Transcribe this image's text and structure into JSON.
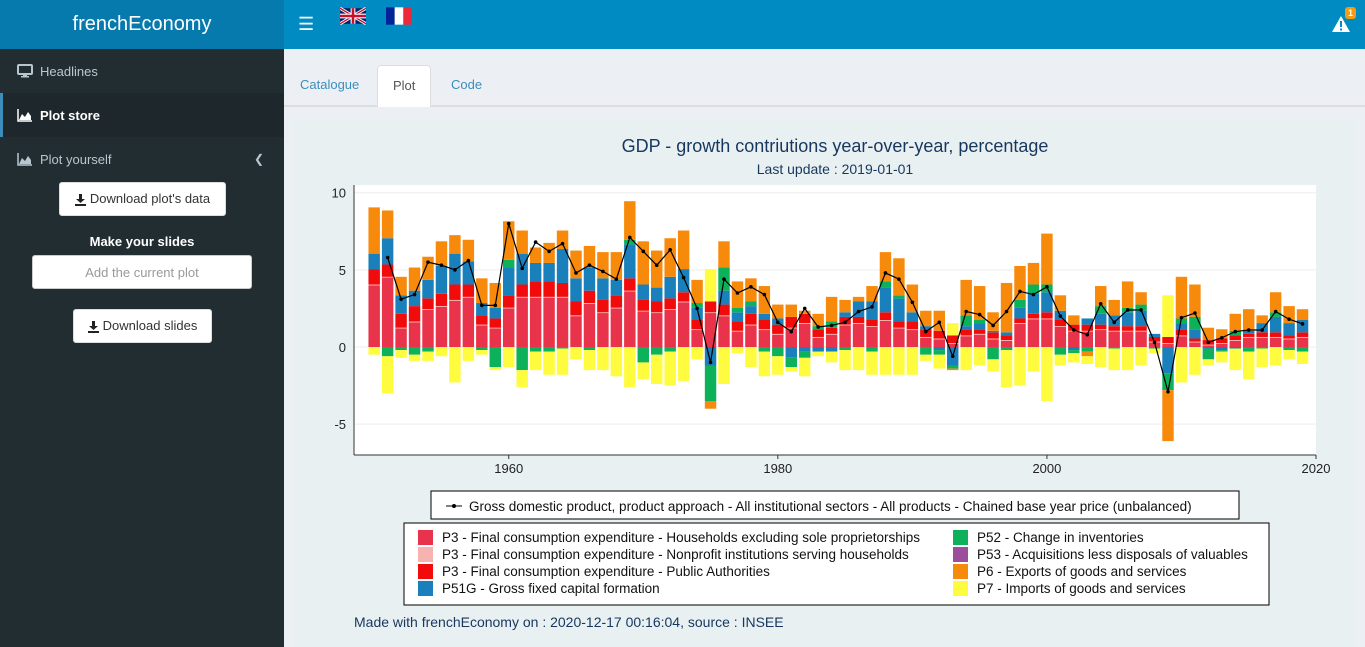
{
  "app": {
    "title": "frenchEconomy"
  },
  "sidebar": {
    "items": [
      {
        "label": "Headlines",
        "icon": "desktop-icon"
      },
      {
        "label": "Plot store",
        "icon": "area-chart-icon"
      },
      {
        "label": "Plot yourself",
        "icon": "area-chart-icon"
      }
    ],
    "download_data_label": "Download plot's data",
    "slides_heading": "Make your slides",
    "add_plot_placeholder": "Add the current plot",
    "download_slides_label": "Download slides"
  },
  "header": {
    "alert_count": "1",
    "flags": [
      "uk-flag",
      "france-flag"
    ]
  },
  "tabs": [
    {
      "label": "Catalogue"
    },
    {
      "label": "Plot"
    },
    {
      "label": "Code"
    }
  ],
  "footer": "Made with frenchEconomy on : 2020-12-17 00:16:04, source : INSEE",
  "colors": {
    "P3_hh": "#e8334a",
    "P3_npish": "#f7b3b0",
    "P3_gov": "#f20b0b",
    "P51G": "#1a80bb",
    "P52": "#0cb159",
    "P53": "#9c4d9c",
    "P6": "#f78a0b",
    "P7": "#fffb3f",
    "brand": "#0679ad",
    "topbar": "#008cc3"
  },
  "chart_data": {
    "type": "bar",
    "title": "GDP - growth contriutions year-over-year, percentage",
    "subtitle": "Last update : 2019-01-01",
    "xlabel": "",
    "ylabel": "",
    "xlim": [
      1948.5,
      2020
    ],
    "ylim": [
      -7,
      10.5
    ],
    "xticks": [
      1960,
      1980,
      2000,
      2020
    ],
    "yticks": [
      10,
      5,
      0,
      -5
    ],
    "stacked": true,
    "line_legend": "Gross domestic product, product approach - All institutional sectors - All products - Chained base year price (unbalanced)",
    "legend": {
      "position": "bottom"
    },
    "x": [
      1950,
      1951,
      1952,
      1953,
      1954,
      1955,
      1956,
      1957,
      1958,
      1959,
      1960,
      1961,
      1962,
      1963,
      1964,
      1965,
      1966,
      1967,
      1968,
      1969,
      1970,
      1971,
      1972,
      1973,
      1974,
      1975,
      1976,
      1977,
      1978,
      1979,
      1980,
      1981,
      1982,
      1983,
      1984,
      1985,
      1986,
      1987,
      1988,
      1989,
      1990,
      1991,
      1992,
      1993,
      1994,
      1995,
      1996,
      1997,
      1998,
      1999,
      2000,
      2001,
      2002,
      2003,
      2004,
      2005,
      2006,
      2007,
      2008,
      2009,
      2010,
      2011,
      2012,
      2013,
      2014,
      2015,
      2016,
      2017,
      2018,
      2019
    ],
    "series": [
      {
        "name": "P3 - Final consumption expenditure - Households excluding sole proprietorships",
        "values": [
          4.0,
          4.5,
          1.2,
          1.6,
          2.4,
          2.6,
          3.0,
          3.2,
          1.4,
          1.2,
          2.5,
          3.2,
          3.2,
          3.2,
          3.2,
          2.0,
          2.8,
          2.2,
          2.5,
          3.6,
          2.3,
          2.2,
          2.4,
          2.9,
          1.1,
          2.2,
          2.0,
          1.0,
          1.4,
          1.1,
          0.8,
          1.2,
          1.5,
          0.6,
          0.8,
          1.4,
          1.5,
          1.3,
          1.7,
          1.2,
          1.1,
          0.6,
          0.5,
          0.2,
          0.7,
          0.8,
          0.5,
          0.4,
          1.5,
          1.8,
          1.8,
          1.3,
          1.0,
          1.0,
          1.1,
          1.0,
          1.0,
          1.0,
          0.3,
          0.2,
          0.7,
          0.3,
          0.1,
          0.2,
          0.4,
          0.6,
          0.6,
          0.6,
          0.5,
          0.6
        ]
      },
      {
        "name": "P3 - Final consumption expenditure - Nonprofit institutions serving households",
        "values": [
          0.05,
          0.05,
          0.05,
          0.05,
          0.05,
          0.05,
          0.05,
          0.05,
          0.05,
          0.05,
          0.05,
          0.05,
          0.05,
          0.05,
          0.05,
          0.05,
          0.05,
          0.05,
          0.05,
          0.05,
          0.05,
          0.05,
          0.05,
          0.05,
          0.05,
          0.05,
          0.05,
          0.05,
          0.05,
          0.05,
          0.05,
          0.05,
          0.05,
          0.05,
          0.05,
          0.05,
          0.05,
          0.05,
          0.05,
          0.05,
          0.05,
          0.05,
          0.05,
          0.05,
          0.05,
          0.05,
          0.05,
          0.05,
          0.05,
          0.05,
          0.05,
          0.05,
          0.05,
          0.05,
          0.05,
          0.05,
          0.05,
          0.05,
          0.05,
          0.05,
          0.05,
          0.05,
          0.05,
          0.05,
          0.05,
          0.05,
          0.05,
          0.05,
          0.05,
          0.05
        ]
      },
      {
        "name": "P3 - Final consumption expenditure - Public Authorities",
        "values": [
          1.0,
          0.8,
          0.9,
          1.0,
          0.7,
          0.8,
          1.0,
          0.8,
          0.6,
          0.6,
          0.8,
          0.8,
          1.0,
          1.0,
          0.9,
          0.9,
          0.8,
          0.8,
          0.8,
          0.8,
          0.7,
          0.7,
          0.7,
          0.6,
          0.6,
          0.7,
          0.7,
          0.6,
          0.7,
          0.6,
          0.6,
          0.7,
          0.6,
          0.5,
          0.4,
          0.5,
          0.4,
          0.4,
          0.5,
          0.4,
          0.5,
          0.5,
          0.5,
          0.5,
          0.4,
          0.3,
          0.4,
          0.3,
          0.3,
          0.3,
          0.4,
          0.4,
          0.4,
          0.4,
          0.3,
          0.3,
          0.3,
          0.3,
          0.3,
          0.4,
          0.4,
          0.2,
          0.3,
          0.3,
          0.3,
          0.2,
          0.3,
          0.3,
          0.2,
          0.3
        ]
      },
      {
        "name": "P51G - Gross fixed capital formation",
        "values": [
          1.0,
          1.7,
          1.2,
          1.0,
          1.2,
          1.8,
          2.0,
          1.5,
          0.8,
          0.7,
          1.8,
          2.0,
          1.2,
          1.2,
          2.2,
          1.5,
          1.5,
          1.4,
          1.0,
          2.2,
          1.0,
          0.9,
          1.4,
          1.5,
          0.8,
          -1.2,
          0.9,
          0.6,
          0.5,
          0.4,
          0.4,
          -0.7,
          -0.3,
          -0.3,
          -0.3,
          0.3,
          1.0,
          1.2,
          1.6,
          1.5,
          0.6,
          0.2,
          -0.2,
          -1.2,
          0.2,
          0.4,
          0.1,
          0.2,
          0.7,
          1.3,
          1.3,
          0.6,
          -0.2,
          0.4,
          0.7,
          0.7,
          0.9,
          1.0,
          0.2,
          -1.7,
          0.4,
          0.6,
          -0.1,
          -0.2,
          -0.1,
          0.2,
          0.6,
          1.0,
          0.8,
          0.8
        ]
      },
      {
        "name": "P52 - Change in inventories",
        "values": [
          0,
          -0.6,
          -0.2,
          -0.5,
          -0.3,
          0,
          0,
          0,
          -0.2,
          -1.3,
          0.5,
          -1.5,
          -0.3,
          -0.3,
          -0.1,
          0,
          -0.2,
          0,
          0,
          0.3,
          -1.0,
          -0.5,
          -0.3,
          0,
          0.3,
          -2.3,
          1.5,
          0.3,
          0.3,
          -0.3,
          -0.6,
          -0.6,
          -0.4,
          0.2,
          0.4,
          -0.2,
          0,
          -0.3,
          0.4,
          0.2,
          0,
          -0.5,
          -0.3,
          -0.2,
          0.7,
          0.2,
          -0.8,
          -0.2,
          0.5,
          0.6,
          0.5,
          -0.5,
          -0.2,
          -0.3,
          0.5,
          -0.1,
          0.3,
          0.4,
          -0.1,
          -1.1,
          0.3,
          0.8,
          -0.7,
          -0.1,
          0.3,
          -0.3,
          -0.1,
          0.3,
          -0.2,
          -0.3
        ]
      },
      {
        "name": "P53 - Acquisitions less disposals of valuables",
        "values": [
          0,
          0,
          0,
          0,
          0,
          0,
          0,
          0,
          0,
          0,
          0,
          0,
          0,
          0,
          0,
          0,
          0,
          0,
          0,
          0,
          0,
          0,
          0,
          0,
          0,
          0,
          0,
          0,
          0,
          0,
          0,
          0,
          0,
          0,
          0,
          0,
          0,
          0,
          0,
          0,
          0,
          0,
          0,
          0,
          0,
          0,
          0,
          0,
          0,
          0,
          0,
          0,
          0,
          0,
          0,
          0,
          0,
          0,
          0,
          0,
          0,
          0,
          0,
          0,
          0,
          0,
          0,
          0,
          0,
          0
        ]
      },
      {
        "name": "P6 - Exports of goods and services",
        "values": [
          3.0,
          1.8,
          1.2,
          1.5,
          1.5,
          1.6,
          1.2,
          1.4,
          1.6,
          1.6,
          2.5,
          1.5,
          1.0,
          1.3,
          1.2,
          1.8,
          1.4,
          1.7,
          1.8,
          2.5,
          2.8,
          2.4,
          2.5,
          2.5,
          1.5,
          -0.5,
          1.7,
          1.7,
          1.5,
          1.8,
          0.9,
          0.8,
          0.2,
          0.8,
          1.6,
          0.8,
          0.3,
          1.0,
          1.9,
          2.4,
          1.8,
          1.0,
          1.3,
          -0.1,
          2.3,
          2.2,
          1.2,
          3.2,
          2.2,
          1.4,
          3.3,
          1.0,
          0.6,
          -0.3,
          1.3,
          1.0,
          1.7,
          0.8,
          0.0,
          -3.3,
          2.7,
          2.1,
          0.8,
          0.6,
          1.1,
          1.4,
          0.5,
          1.3,
          1.1,
          0.7
        ]
      },
      {
        "name": "P7 - Imports of goods and services",
        "values": [
          -0.5,
          -2.4,
          -0.5,
          -0.4,
          -0.6,
          -0.6,
          -2.3,
          -0.9,
          -0.3,
          -0.2,
          -1.3,
          -1.1,
          -1.2,
          -1.5,
          -1.7,
          -0.8,
          -1.3,
          -1.5,
          -1.9,
          -2.6,
          -1.1,
          -1.9,
          -2.2,
          -2.2,
          -0.8,
          2.1,
          -2.4,
          -0.4,
          -1.3,
          -1.6,
          -1.2,
          -0.3,
          -1.2,
          -0.3,
          -0.7,
          -1.3,
          -1.5,
          -1.5,
          -1.8,
          -1.8,
          -1.8,
          -0.4,
          -0.9,
          0.8,
          -1.5,
          -1.2,
          -0.8,
          -2.4,
          -2.5,
          -1.6,
          -3.5,
          -0.7,
          -0.6,
          -0.5,
          -1.3,
          -1.4,
          -1.5,
          -1.2,
          -0.3,
          2.7,
          -2.3,
          -1.8,
          -0.4,
          -0.7,
          -1.4,
          -1.8,
          -1.2,
          -1.2,
          -0.6,
          -0.8
        ]
      }
    ],
    "line": {
      "name": "Gross domestic product, product approach - All institutional sectors - All products - Chained base year price (unbalanced)",
      "values": [
        null,
        5.8,
        3.1,
        3.4,
        5.5,
        5.3,
        5.0,
        5.6,
        2.7,
        2.7,
        8.0,
        5.1,
        6.8,
        6.2,
        6.7,
        4.8,
        5.3,
        4.9,
        4.4,
        7.1,
        6.2,
        5.3,
        6.3,
        4.5,
        2.5,
        -1.0,
        4.4,
        3.5,
        3.9,
        3.4,
        1.6,
        1.0,
        2.5,
        1.3,
        1.4,
        1.6,
        2.3,
        2.6,
        4.8,
        4.4,
        2.9,
        1.0,
        1.6,
        -0.6,
        2.3,
        2.1,
        1.4,
        2.3,
        3.6,
        3.4,
        3.9,
        2.0,
        1.1,
        0.8,
        2.8,
        1.6,
        2.4,
        2.4,
        0.3,
        -2.9,
        1.9,
        2.2,
        0.3,
        0.6,
        1.0,
        1.1,
        1.1,
        2.3,
        1.8,
        1.5
      ]
    }
  }
}
